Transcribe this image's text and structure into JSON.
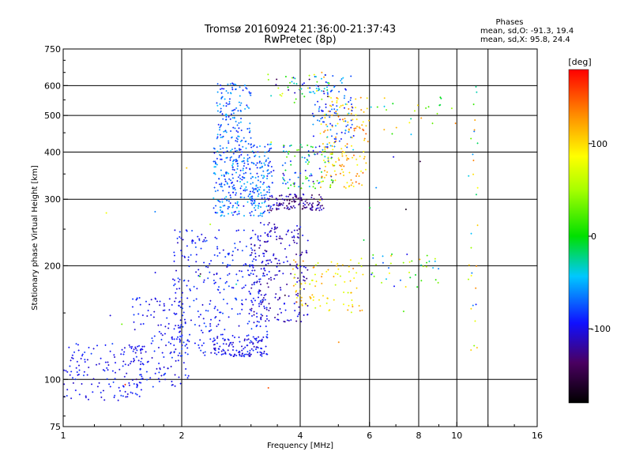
{
  "chart_data": {
    "type": "scatter",
    "title": "Tromsø 20160924 21:36:00-21:37:43",
    "subtitle": "RwPretec (8p)",
    "xlabel": "Frequency [MHz]",
    "ylabel": "Stationary phase Virtual Height [km]",
    "x_scale": "log",
    "y_scale": "log",
    "xlim": [
      1,
      16
    ],
    "ylim": [
      75,
      750
    ],
    "x_ticks": [
      {
        "value": 1,
        "label": "1"
      },
      {
        "value": 2,
        "label": "2"
      },
      {
        "value": 4,
        "label": "4"
      },
      {
        "value": 6,
        "label": "6"
      },
      {
        "value": 8,
        "label": "8"
      },
      {
        "value": 10,
        "label": "10"
      },
      {
        "value": 16,
        "label": "16"
      }
    ],
    "x_grid": [
      2,
      4,
      6,
      8,
      10,
      12
    ],
    "y_ticks": [
      {
        "value": 75,
        "label": "75"
      },
      {
        "value": 100,
        "label": "100"
      },
      {
        "value": 200,
        "label": "200"
      },
      {
        "value": 300,
        "label": "300"
      },
      {
        "value": 400,
        "label": "400"
      },
      {
        "value": 500,
        "label": "500"
      },
      {
        "value": 600,
        "label": "600"
      },
      {
        "value": 750,
        "label": "750"
      }
    ],
    "y_grid": [
      100,
      200,
      300,
      400,
      500,
      600
    ],
    "grid": true,
    "stats": {
      "heading": "Phases",
      "line_o": "mean, sd,O: -91.3, 19.4",
      "line_x": "mean, sd,X:  95.8, 24.4"
    },
    "colorbar": {
      "label": "[deg]",
      "range": [
        -180,
        180
      ],
      "ticks": [
        {
          "value": 100,
          "label": "100"
        },
        {
          "value": 0,
          "label": "0"
        },
        {
          "value": -100,
          "label": "-100"
        }
      ]
    },
    "clusters": [
      {
        "n": 140,
        "x": [
          1.0,
          1.6
        ],
        "y": [
          88,
          125
        ],
        "phase": [
          -110,
          -80
        ]
      },
      {
        "n": 160,
        "x": [
          1.5,
          2.1
        ],
        "y": [
          95,
          165
        ],
        "phase": [
          -110,
          -80
        ]
      },
      {
        "n": 330,
        "x": [
          1.9,
          3.3
        ],
        "y": [
          115,
          250
        ],
        "phase": [
          -110,
          -75
        ]
      },
      {
        "n": 90,
        "x": [
          2.4,
          3.3
        ],
        "y": [
          115,
          130
        ],
        "phase": [
          -115,
          -85
        ]
      },
      {
        "n": 220,
        "x": [
          3.0,
          4.2
        ],
        "y": [
          140,
          260
        ],
        "phase": [
          -130,
          -90
        ]
      },
      {
        "n": 360,
        "x": [
          2.4,
          3.4
        ],
        "y": [
          270,
          420
        ],
        "phase": [
          -100,
          -40
        ]
      },
      {
        "n": 130,
        "x": [
          2.45,
          3.0
        ],
        "y": [
          420,
          610
        ],
        "phase": [
          -95,
          -45
        ]
      },
      {
        "n": 120,
        "x": [
          3.3,
          4.6
        ],
        "y": [
          280,
          310
        ],
        "phase": [
          -150,
          -100
        ]
      },
      {
        "n": 100,
        "x": [
          3.6,
          4.9
        ],
        "y": [
          320,
          420
        ],
        "phase": [
          -120,
          40
        ]
      },
      {
        "n": 150,
        "x": [
          4.5,
          6.0
        ],
        "y": [
          320,
          560
        ],
        "phase": [
          80,
          150
        ]
      },
      {
        "n": 90,
        "x": [
          3.8,
          5.8
        ],
        "y": [
          150,
          210
        ],
        "phase": [
          60,
          140
        ]
      },
      {
        "n": 100,
        "x": [
          4.3,
          5.5
        ],
        "y": [
          400,
          640
        ],
        "phase": [
          -100,
          -40
        ]
      },
      {
        "n": 60,
        "x": [
          3.3,
          4.8
        ],
        "y": [
          540,
          650
        ],
        "phase": [
          -160,
          130
        ]
      },
      {
        "n": 40,
        "x": [
          6.0,
          9.0
        ],
        "y": [
          175,
          215
        ],
        "phase": [
          -100,
          120
        ]
      },
      {
        "n": 25,
        "x": [
          6.0,
          10.0
        ],
        "y": [
          440,
          560
        ],
        "phase": [
          -60,
          140
        ]
      },
      {
        "n": 30,
        "x": [
          10.7,
          11.3
        ],
        "y": [
          110,
          620
        ],
        "phase": [
          -120,
          140
        ]
      },
      {
        "n": 30,
        "x": [
          1.2,
          9.0
        ],
        "y": [
          90,
          440
        ],
        "phase": [
          -170,
          170
        ]
      }
    ]
  }
}
